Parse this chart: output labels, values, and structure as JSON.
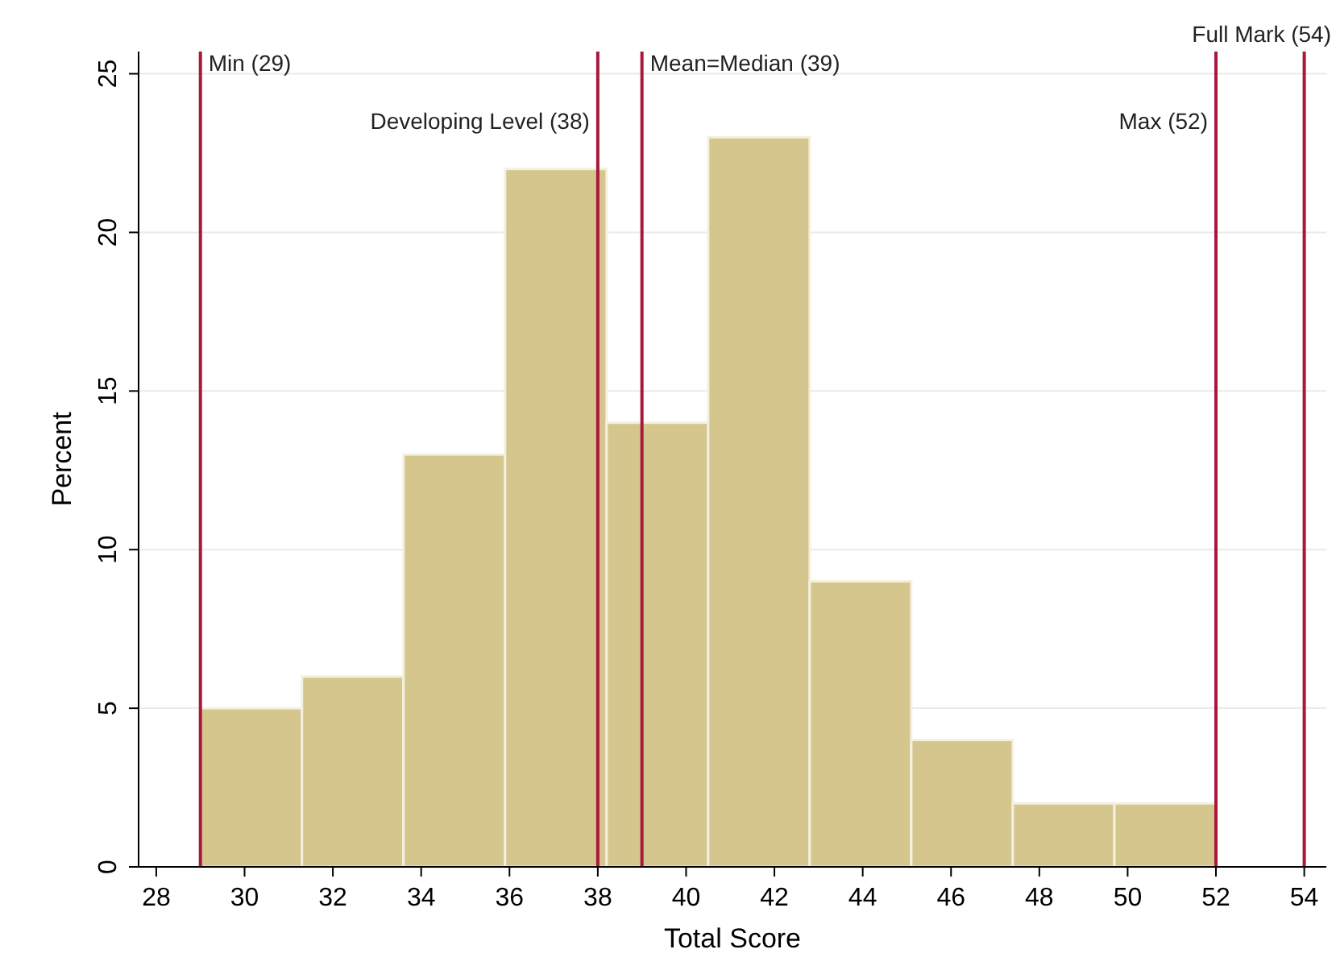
{
  "chart_data": {
    "type": "histogram",
    "xlabel": "Total Score",
    "ylabel": "Percent",
    "bins": [
      29,
      31.3,
      33.6,
      35.9,
      38.2,
      40.5,
      42.8,
      45.1,
      47.4,
      49.7,
      52
    ],
    "values": [
      5,
      6,
      13,
      22,
      14,
      23,
      9,
      4,
      2,
      2
    ],
    "color": "#d4c68c",
    "xlim": [
      27.6,
      54.5
    ],
    "xticks": [
      28,
      30,
      32,
      34,
      36,
      38,
      40,
      42,
      44,
      46,
      48,
      50,
      52,
      54
    ],
    "ylim": [
      0,
      25.7
    ],
    "yticks": [
      0,
      5,
      10,
      15,
      20,
      25
    ],
    "grid": "y",
    "ref_lines": [
      {
        "axis": "x",
        "value": 29,
        "label": "Min (29)",
        "color": "#a8183c"
      },
      {
        "axis": "x",
        "value": 38,
        "label": "Developing Level (38)",
        "color": "#a8183c"
      },
      {
        "axis": "x",
        "value": 39,
        "label": "Mean=Median (39)",
        "color": "#a8183c"
      },
      {
        "axis": "x",
        "value": 52,
        "label": "Max (52)",
        "color": "#a8183c"
      },
      {
        "axis": "x",
        "value": 54,
        "label": "Full Mark (54)",
        "color": "#a8183c"
      }
    ]
  }
}
